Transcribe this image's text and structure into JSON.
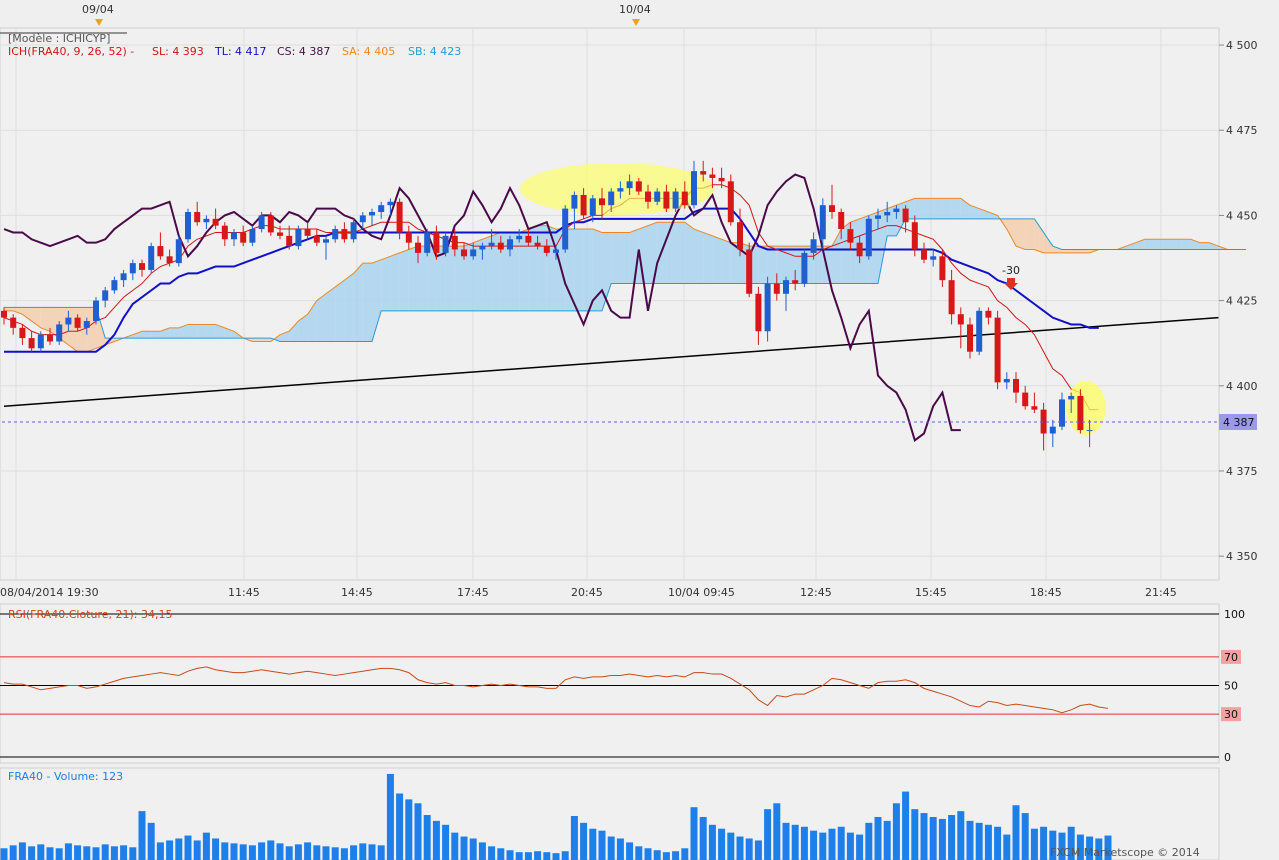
{
  "header": {
    "model_label": "[Modèle : ICHICYP]",
    "ichimoku_label": "ICH(FRA40, 9, 26, 52) -",
    "sl_label": "SL: 4 393",
    "tl_label": "TL: 4 417",
    "cs_label": "CS: 4 387",
    "sa_label": "SA: 4 405",
    "sb_label": "SB: 4 423",
    "date_markers": [
      "09/04",
      "10/04"
    ]
  },
  "colors": {
    "sl": "#d01818",
    "tl": "#1010c8",
    "cs": "#4a0a4a",
    "sa": "#e88a2a",
    "sb": "#2a9ad8",
    "candle_up": "#1f5fd0",
    "candle_down": "#d81818",
    "volume": "#1f7fe8",
    "rsi": "#c84a1a",
    "price_badge": "#9a9ae8"
  },
  "price_axis": {
    "ticks": [
      "4 500",
      "4 475",
      "4 450",
      "4 425",
      "4 400",
      "4 375",
      "4 350"
    ],
    "current": "4 387"
  },
  "time_axis": {
    "ticks": [
      "08/04/2014 19:30",
      "11:45",
      "14:45",
      "17:45",
      "20:45",
      "10/04 09:45",
      "12:45",
      "15:45",
      "18:45",
      "21:45"
    ]
  },
  "annotation": {
    "label": "-30"
  },
  "rsi": {
    "label": "RSI(FRA40.Cloture, 21): 34,15",
    "levels": [
      "100",
      "70",
      "50",
      "30",
      "0"
    ]
  },
  "volume": {
    "label": "FRA40 - Volume: 123"
  },
  "footer": {
    "copyright": "FXCM Marketscope © 2014"
  },
  "chart_data": {
    "type": "candlestick",
    "instrument": "FRA40",
    "ylim": [
      4343,
      4505
    ],
    "time_labels": [
      "08/04/2014 19:30",
      "11:45",
      "14:45",
      "17:45",
      "20:45",
      "10/04 09:45",
      "12:45",
      "15:45",
      "18:45",
      "21:45"
    ],
    "ohlc": [
      [
        4422,
        4423,
        4418,
        4420
      ],
      [
        4420,
        4421,
        4415,
        4417
      ],
      [
        4417,
        4418,
        4412,
        4414
      ],
      [
        4414,
        4416,
        4410,
        4411
      ],
      [
        4411,
        4416,
        4410,
        4415
      ],
      [
        4415,
        4417,
        4412,
        4413
      ],
      [
        4413,
        4419,
        4412,
        4418
      ],
      [
        4418,
        4422,
        4416,
        4420
      ],
      [
        4420,
        4421,
        4416,
        4417
      ],
      [
        4417,
        4420,
        4415,
        4419
      ],
      [
        4419,
        4426,
        4418,
        4425
      ],
      [
        4425,
        4429,
        4423,
        4428
      ],
      [
        4428,
        4432,
        4427,
        4431
      ],
      [
        4431,
        4434,
        4429,
        4433
      ],
      [
        4433,
        4437,
        4431,
        4436
      ],
      [
        4436,
        4437,
        4432,
        4434
      ],
      [
        4434,
        4442,
        4433,
        4441
      ],
      [
        4441,
        4445,
        4437,
        4438
      ],
      [
        4438,
        4440,
        4435,
        4436
      ],
      [
        4436,
        4444,
        4435,
        4443
      ],
      [
        4443,
        4452,
        4442,
        4451
      ],
      [
        4451,
        4454,
        4447,
        4448
      ],
      [
        4448,
        4450,
        4446,
        4449
      ],
      [
        4449,
        4452,
        4446,
        4447
      ],
      [
        4447,
        4448,
        4441,
        4443
      ],
      [
        4443,
        4446,
        4441,
        4445
      ],
      [
        4445,
        4447,
        4441,
        4442
      ],
      [
        4442,
        4447,
        4441,
        4446
      ],
      [
        4446,
        4451,
        4445,
        4450
      ],
      [
        4450,
        4451,
        4444,
        4445
      ],
      [
        4445,
        4447,
        4443,
        4444
      ],
      [
        4444,
        4447,
        4440,
        4441
      ],
      [
        4441,
        4447,
        4440,
        4446
      ],
      [
        4446,
        4448,
        4443,
        4444
      ],
      [
        4444,
        4446,
        4441,
        4442
      ],
      [
        4442,
        4444,
        4437,
        4443
      ],
      [
        4443,
        4447,
        4442,
        4446
      ],
      [
        4446,
        4448,
        4442,
        4443
      ],
      [
        4443,
        4449,
        4442,
        4448
      ],
      [
        4448,
        4451,
        4446,
        4450
      ],
      [
        4450,
        4452,
        4447,
        4451
      ],
      [
        4451,
        4454,
        4449,
        4453
      ],
      [
        4453,
        4455,
        4450,
        4454
      ],
      [
        4454,
        4455,
        4443,
        4445
      ],
      [
        4445,
        4447,
        4440,
        4442
      ],
      [
        4442,
        4444,
        4436,
        4439
      ],
      [
        4439,
        4446,
        4438,
        4445
      ],
      [
        4445,
        4447,
        4437,
        4439
      ],
      [
        4439,
        4445,
        4438,
        4444
      ],
      [
        4444,
        4446,
        4438,
        4440
      ],
      [
        4440,
        4442,
        4437,
        4438
      ],
      [
        4438,
        4442,
        4437,
        4440
      ],
      [
        4440,
        4442,
        4437,
        4441
      ],
      [
        4441,
        4446,
        4440,
        4442
      ],
      [
        4442,
        4444,
        4439,
        4440
      ],
      [
        4440,
        4444,
        4438,
        4443
      ],
      [
        4443,
        4446,
        4442,
        4444
      ],
      [
        4444,
        4446,
        4441,
        4442
      ],
      [
        4442,
        4444,
        4440,
        4441
      ],
      [
        4441,
        4443,
        4438,
        4439
      ],
      [
        4439,
        4441,
        4437,
        4440
      ],
      [
        4440,
        4453,
        4439,
        4452
      ],
      [
        4452,
        4457,
        4446,
        4456
      ],
      [
        4456,
        4458,
        4449,
        4450
      ],
      [
        4450,
        4456,
        4448,
        4455
      ],
      [
        4455,
        4458,
        4449,
        4453
      ],
      [
        4453,
        4458,
        4451,
        4457
      ],
      [
        4457,
        4460,
        4455,
        4458
      ],
      [
        4458,
        4462,
        4456,
        4460
      ],
      [
        4460,
        4461,
        4456,
        4457
      ],
      [
        4457,
        4459,
        4452,
        4454
      ],
      [
        4454,
        4458,
        4453,
        4457
      ],
      [
        4457,
        4459,
        4451,
        4452
      ],
      [
        4452,
        4458,
        4451,
        4457
      ],
      [
        4457,
        4460,
        4452,
        4453
      ],
      [
        4453,
        4466,
        4452,
        4463
      ],
      [
        4463,
        4466,
        4460,
        4462
      ],
      [
        4462,
        4464,
        4458,
        4461
      ],
      [
        4461,
        4464,
        4458,
        4460
      ],
      [
        4460,
        4462,
        4447,
        4448
      ],
      [
        4448,
        4452,
        4438,
        4440
      ],
      [
        4440,
        4442,
        4426,
        4427
      ],
      [
        4427,
        4429,
        4412,
        4416
      ],
      [
        4416,
        4432,
        4413,
        4430
      ],
      [
        4430,
        4433,
        4425,
        4427
      ],
      [
        4427,
        4432,
        4422,
        4431
      ],
      [
        4431,
        4434,
        4428,
        4430
      ],
      [
        4430,
        4440,
        4429,
        4439
      ],
      [
        4439,
        4445,
        4437,
        4443
      ],
      [
        4443,
        4455,
        4440,
        4453
      ],
      [
        4453,
        4459,
        4449,
        4451
      ],
      [
        4451,
        4452,
        4443,
        4446
      ],
      [
        4446,
        4448,
        4440,
        4442
      ],
      [
        4442,
        4444,
        4436,
        4438
      ],
      [
        4438,
        4450,
        4437,
        4449
      ],
      [
        4449,
        4452,
        4446,
        4450
      ],
      [
        4450,
        4454,
        4448,
        4451
      ],
      [
        4451,
        4453,
        4449,
        4452
      ],
      [
        4452,
        4453,
        4445,
        4448
      ],
      [
        4448,
        4450,
        4438,
        4440
      ],
      [
        4440,
        4442,
        4436,
        4437
      ],
      [
        4437,
        4440,
        4435,
        4438
      ],
      [
        4438,
        4440,
        4429,
        4431
      ],
      [
        4431,
        4434,
        4418,
        4421
      ],
      [
        4421,
        4423,
        4411,
        4418
      ],
      [
        4418,
        4420,
        4408,
        4410
      ],
      [
        4410,
        4423,
        4409,
        4422
      ],
      [
        4422,
        4423,
        4418,
        4420
      ],
      [
        4420,
        4422,
        4399,
        4401
      ],
      [
        4401,
        4404,
        4399,
        4402
      ],
      [
        4402,
        4404,
        4395,
        4398
      ],
      [
        4398,
        4400,
        4393,
        4394
      ],
      [
        4394,
        4398,
        4392,
        4393
      ],
      [
        4393,
        4395,
        4381,
        4386
      ],
      [
        4386,
        4390,
        4382,
        4388
      ],
      [
        4388,
        4398,
        4387,
        4396
      ],
      [
        4396,
        4398,
        4392,
        4397
      ],
      [
        4397,
        4399,
        4386,
        4387
      ],
      [
        4387,
        4390,
        4382,
        4387
      ]
    ],
    "tenkan_sl": [
      4420,
      4419,
      4418,
      4416,
      4415,
      4415,
      4415,
      4416,
      4416,
      4417,
      4419,
      4420,
      4423,
      4426,
      4428,
      4430,
      4433,
      4435,
      4436,
      4437,
      4441,
      4443,
      4444,
      4445,
      4445,
      4445,
      4445,
      4446,
      4447,
      4447,
      4446,
      4446,
      4446,
      4446,
      4446,
      4445,
      4445,
      4445,
      4445,
      4446,
      4447,
      4448,
      4448,
      4448,
      4448,
      4446,
      4445,
      4444,
      4443,
      4442,
      4442,
      4441,
      4441,
      4441,
      4441,
      4441,
      4441,
      4441,
      4441,
      4441,
      4441,
      4446,
      4448,
      4449,
      4450,
      4450,
      4452,
      4453,
      4455,
      4455,
      4455,
      4455,
      4455,
      4455,
      4455,
      4458,
      4458,
      4459,
      4459,
      4458,
      4456,
      4453,
      4445,
      4441,
      4440,
      4439,
      4438,
      4438,
      4438,
      4440,
      4441,
      4442,
      4443,
      4444,
      4445,
      4446,
      4447,
      4447,
      4446,
      4445,
      4444,
      4443,
      4440,
      4436,
      4433,
      4431,
      4430,
      4429,
      4425,
      4423,
      4420,
      4418,
      4415,
      4410,
      4405,
      4403,
      4399,
      4398,
      4393,
      4393
    ],
    "kijun_tl": [
      4410,
      4410,
      4410,
      4410,
      4410,
      4410,
      4410,
      4410,
      4410,
      4410,
      4410,
      4412,
      4415,
      4420,
      4424,
      4426,
      4428,
      4430,
      4430,
      4432,
      4433,
      4433,
      4434,
      4435,
      4435,
      4435,
      4436,
      4437,
      4438,
      4439,
      4440,
      4441,
      4442,
      4443,
      4444,
      4444,
      4445,
      4445,
      4445,
      4445,
      4445,
      4445,
      4445,
      4445,
      4445,
      4445,
      4445,
      4445,
      4445,
      4445,
      4445,
      4445,
      4445,
      4445,
      4445,
      4445,
      4445,
      4445,
      4445,
      4445,
      4445,
      4447,
      4448,
      4448,
      4449,
      4449,
      4449,
      4449,
      4449,
      4449,
      4449,
      4449,
      4449,
      4449,
      4449,
      4451,
      4452,
      4452,
      4452,
      4452,
      4449,
      4445,
      4441,
      4440,
      4440,
      4440,
      4440,
      4440,
      4440,
      4440,
      4440,
      4440,
      4440,
      4440,
      4440,
      4440,
      4440,
      4440,
      4440,
      4440,
      4440,
      4440,
      4439,
      4437,
      4436,
      4435,
      4434,
      4433,
      4431,
      4430,
      4428,
      4426,
      4424,
      4422,
      4420,
      4419,
      4418,
      4418,
      4417,
      4417
    ],
    "chikou_cs": [
      4446,
      4445,
      4445,
      4443,
      4442,
      4441,
      4442,
      4443,
      4444,
      4442,
      4442,
      4443,
      4446,
      4448,
      4450,
      4452,
      4452,
      4453,
      4454,
      4444,
      4438,
      4441,
      4445,
      4448,
      4450,
      4451,
      4449,
      4447,
      4450,
      4450,
      4448,
      4451,
      4450,
      4448,
      4452,
      4452,
      4452,
      4450,
      4449,
      4446,
      4444,
      4443,
      4450,
      4458,
      4455,
      4450,
      4445,
      4438,
      4439,
      4447,
      4450,
      4457,
      4453,
      4448,
      4452,
      4458,
      4453,
      4446,
      4447,
      4448,
      4440,
      4430,
      4424,
      4418,
      4425,
      4428,
      4422,
      4420,
      4420,
      4440,
      4422,
      4436,
      4443,
      4450,
      4455,
      4450,
      4452,
      4456,
      4448,
      4442,
      4440,
      4438,
      4444,
      4453,
      4457,
      4460,
      4462,
      4461,
      4452,
      4440,
      4428,
      4420,
      4411,
      4418,
      4422,
      4403,
      4400,
      4398,
      4393,
      4384,
      4386,
      4394,
      4398,
      4387,
      4387
    ],
    "senkou_sa": [
      4422,
      4422,
      4421,
      4419,
      4417,
      4416,
      4414,
      4412,
      4410,
      4410,
      4411,
      4412,
      4413,
      4414,
      4415,
      4416,
      4416,
      4416,
      4417,
      4417,
      4418,
      4418,
      4418,
      4418,
      4417,
      4416,
      4414,
      4413,
      4413,
      4413,
      4415,
      4416,
      4419,
      4421,
      4425,
      4427,
      4429,
      4431,
      4433,
      4436,
      4436,
      4437,
      4438,
      4439,
      4440,
      4441,
      4441,
      4441,
      4441,
      4441,
      4441,
      4442,
      4443,
      4444,
      4445,
      4445,
      4445,
      4446,
      4447,
      4447,
      4446,
      4446,
      4446,
      4446,
      4446,
      4445,
      4445,
      4445,
      4445,
      4446,
      4447,
      4448,
      4448,
      4448,
      4448,
      4446,
      4445,
      4444,
      4443,
      4442,
      4442,
      4441,
      4441,
      4441,
      4441,
      4441,
      4441,
      4441,
      4441,
      4441,
      4441,
      4446,
      4448,
      4449,
      4450,
      4451,
      4452,
      4453,
      4454,
      4455,
      4455,
      4455,
      4455,
      4455,
      4455,
      4453,
      4452,
      4451,
      4450,
      4446,
      4441,
      4440,
      4440,
      4439,
      4439,
      4439,
      4439,
      4439,
      4439,
      4440,
      4440,
      4440,
      4441,
      4442,
      4443,
      4443,
      4443,
      4443,
      4443,
      4443,
      4442,
      4442,
      4441,
      4440
    ],
    "senkou_sb": [
      4423,
      4423,
      4423,
      4423,
      4423,
      4423,
      4423,
      4423,
      4423,
      4423,
      4423,
      4414,
      4414,
      4414,
      4414,
      4414,
      4414,
      4414,
      4414,
      4414,
      4414,
      4414,
      4414,
      4414,
      4414,
      4414,
      4414,
      4414,
      4414,
      4414,
      4413,
      4413,
      4413,
      4413,
      4413,
      4413,
      4413,
      4413,
      4413,
      4413,
      4413,
      4422,
      4422,
      4422,
      4422,
      4422,
      4422,
      4422,
      4422,
      4422,
      4422,
      4422,
      4422,
      4422,
      4422,
      4422,
      4422,
      4422,
      4422,
      4422,
      4422,
      4422,
      4422,
      4422,
      4422,
      4422,
      4430,
      4430,
      4430,
      4430,
      4430,
      4430,
      4430,
      4430,
      4430,
      4430,
      4430,
      4430,
      4430,
      4430,
      4430,
      4430,
      4430,
      4430,
      4430,
      4430,
      4430,
      4430,
      4430,
      4430,
      4430,
      4430,
      4430,
      4430,
      4430,
      4430,
      4444,
      4444,
      4449,
      4449,
      4449,
      4449,
      4449,
      4449,
      4449,
      4449,
      4449,
      4449,
      4449,
      4449,
      4449,
      4449,
      4449,
      4445,
      4441,
      4440,
      4440,
      4440,
      4440,
      4440,
      4440,
      4440,
      4440,
      4440,
      4440,
      4440,
      4440,
      4440,
      4440,
      4440,
      4440,
      4440,
      4440,
      4440,
      4440,
      4440
    ],
    "trendline": {
      "from": [
        0,
        4394
      ],
      "to": [
        132,
        4420
      ]
    },
    "rsi_values": [
      52,
      51,
      51,
      49,
      47,
      48,
      49,
      50,
      50,
      48,
      49,
      51,
      53,
      55,
      56,
      57,
      58,
      59,
      58,
      57,
      60,
      62,
      63,
      61,
      60,
      59,
      59,
      60,
      61,
      60,
      59,
      58,
      59,
      60,
      59,
      58,
      57,
      58,
      59,
      60,
      61,
      62,
      62,
      61,
      59,
      54,
      52,
      51,
      52,
      50,
      50,
      49,
      50,
      51,
      50,
      51,
      50,
      49,
      49,
      48,
      48,
      54,
      56,
      55,
      56,
      56,
      57,
      57,
      58,
      57,
      56,
      57,
      56,
      57,
      56,
      59,
      59,
      58,
      58,
      55,
      51,
      47,
      40,
      36,
      43,
      42,
      44,
      44,
      47,
      50,
      55,
      54,
      52,
      50,
      48,
      52,
      53,
      53,
      54,
      52,
      48,
      46,
      44,
      42,
      39,
      36,
      35,
      39,
      38,
      36,
      37,
      36,
      35,
      34,
      33,
      31,
      33,
      36,
      37,
      35,
      34
    ]
  }
}
